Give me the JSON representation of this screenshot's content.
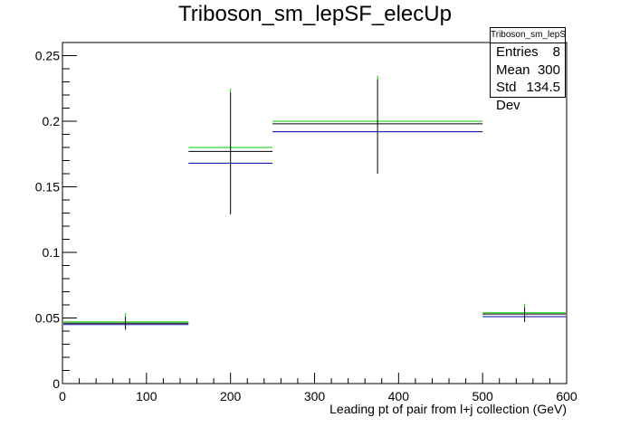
{
  "chart_data": {
    "type": "histogram",
    "title": "Triboson_sm_lepSF_elecUp",
    "xlabel": "Leading pt of pair from l+j collection (GeV)",
    "ylabel": "",
    "xlim": [
      0,
      600
    ],
    "ylim": [
      0,
      0.26
    ],
    "x_ticks": [
      0,
      100,
      200,
      300,
      400,
      500,
      600
    ],
    "y_ticks": [
      0,
      0.05,
      0.1,
      0.15,
      0.2,
      0.25
    ],
    "x_tick_labels": [
      "0",
      "100",
      "200",
      "300",
      "400",
      "500",
      "600"
    ],
    "y_tick_labels": [
      "0",
      "0.05",
      "0.1",
      "0.15",
      "0.2",
      "0.25"
    ],
    "bins": [
      {
        "low": 0,
        "high": 150,
        "center": 75,
        "value": 0.046,
        "err_low": 0.041,
        "err_high": 0.051,
        "green": 0.047,
        "blue": 0.045
      },
      {
        "low": 150,
        "high": 250,
        "center": 200,
        "value": 0.177,
        "err_low": 0.129,
        "err_high": 0.222,
        "green": 0.18,
        "blue": 0.168
      },
      {
        "low": 250,
        "high": 500,
        "center": 375,
        "value": 0.198,
        "err_low": 0.16,
        "err_high": 0.232,
        "green": 0.2,
        "blue": 0.192
      },
      {
        "low": 500,
        "high": 600,
        "center": 550,
        "value": 0.053,
        "err_low": 0.047,
        "err_high": 0.058,
        "green": 0.054,
        "blue": 0.051
      }
    ],
    "colors": {
      "nominal": "#000000",
      "up": "#00cc00",
      "down": "#000099"
    },
    "grid": false,
    "legend": "none"
  },
  "stats_box": {
    "header": "Triboson_sm_lepSF_elecUp",
    "rows": [
      {
        "label": "Entries",
        "value": "8"
      },
      {
        "label": "Mean",
        "value": "300"
      },
      {
        "label": "Std Dev",
        "value": "134.5"
      }
    ]
  }
}
